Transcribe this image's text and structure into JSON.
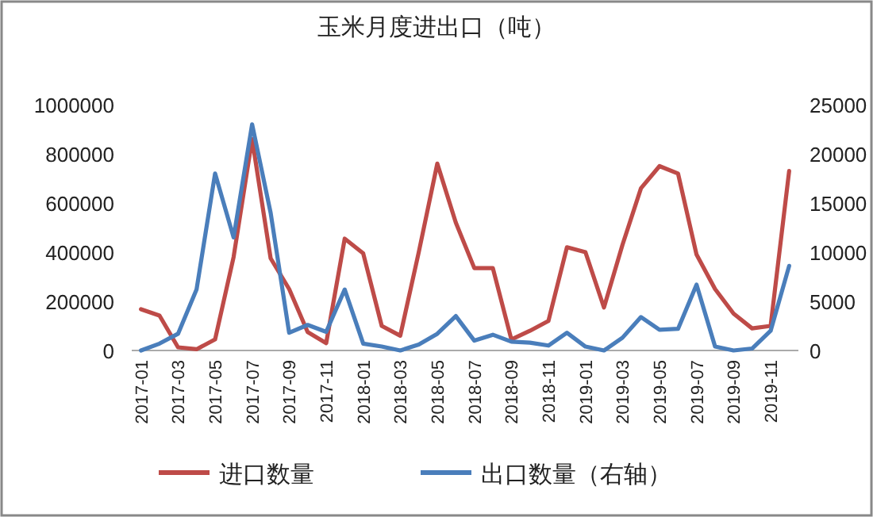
{
  "chart_data": {
    "type": "line",
    "title": "玉米月度进出口（吨）",
    "categories": [
      "2017-01",
      null,
      "2017-03",
      null,
      "2017-05",
      null,
      "2017-07",
      null,
      "2017-09",
      null,
      "2017-11",
      null,
      "2018-01",
      null,
      "2018-03",
      null,
      "2018-05",
      null,
      "2018-07",
      null,
      "2018-09",
      null,
      "2018-11",
      null,
      "2019-01",
      null,
      "2019-03",
      null,
      "2019-05",
      null,
      "2019-07",
      null,
      "2019-09",
      null,
      "2019-11",
      null
    ],
    "series": [
      {
        "name": "进口数量",
        "color": "#be4b48",
        "values": [
          168000,
          142000,
          13000,
          5000,
          45000,
          380000,
          860000,
          375000,
          250000,
          75000,
          30000,
          455000,
          395000,
          100000,
          60000,
          400000,
          760000,
          520000,
          335000,
          335000,
          45000,
          80000,
          120000,
          420000,
          400000,
          175000,
          430000,
          660000,
          750000,
          720000,
          390000,
          250000,
          150000,
          90000,
          100000,
          730000
        ]
      },
      {
        "name": "出口数量（右轴）",
        "color": "#4a7ebb",
        "axis": "y2",
        "values": [
          0,
          700,
          1700,
          6200,
          18000,
          11500,
          23000,
          14000,
          1800,
          2600,
          1900,
          6200,
          700,
          400,
          0,
          600,
          1700,
          3500,
          1000,
          1600,
          900,
          800,
          500,
          1800,
          400,
          0,
          1300,
          3400,
          2100,
          2200,
          6700,
          400,
          0,
          200,
          2000,
          8600
        ]
      }
    ],
    "ylim": [
      0,
      1000000
    ],
    "yticks": [
      0,
      200000,
      400000,
      600000,
      800000,
      1000000
    ],
    "y2lim": [
      0,
      25000
    ],
    "y2ticks": [
      0,
      5000,
      10000,
      15000,
      20000,
      25000
    ],
    "grid": false,
    "legend": "bottom",
    "marker": "none",
    "line_style": "solid"
  }
}
